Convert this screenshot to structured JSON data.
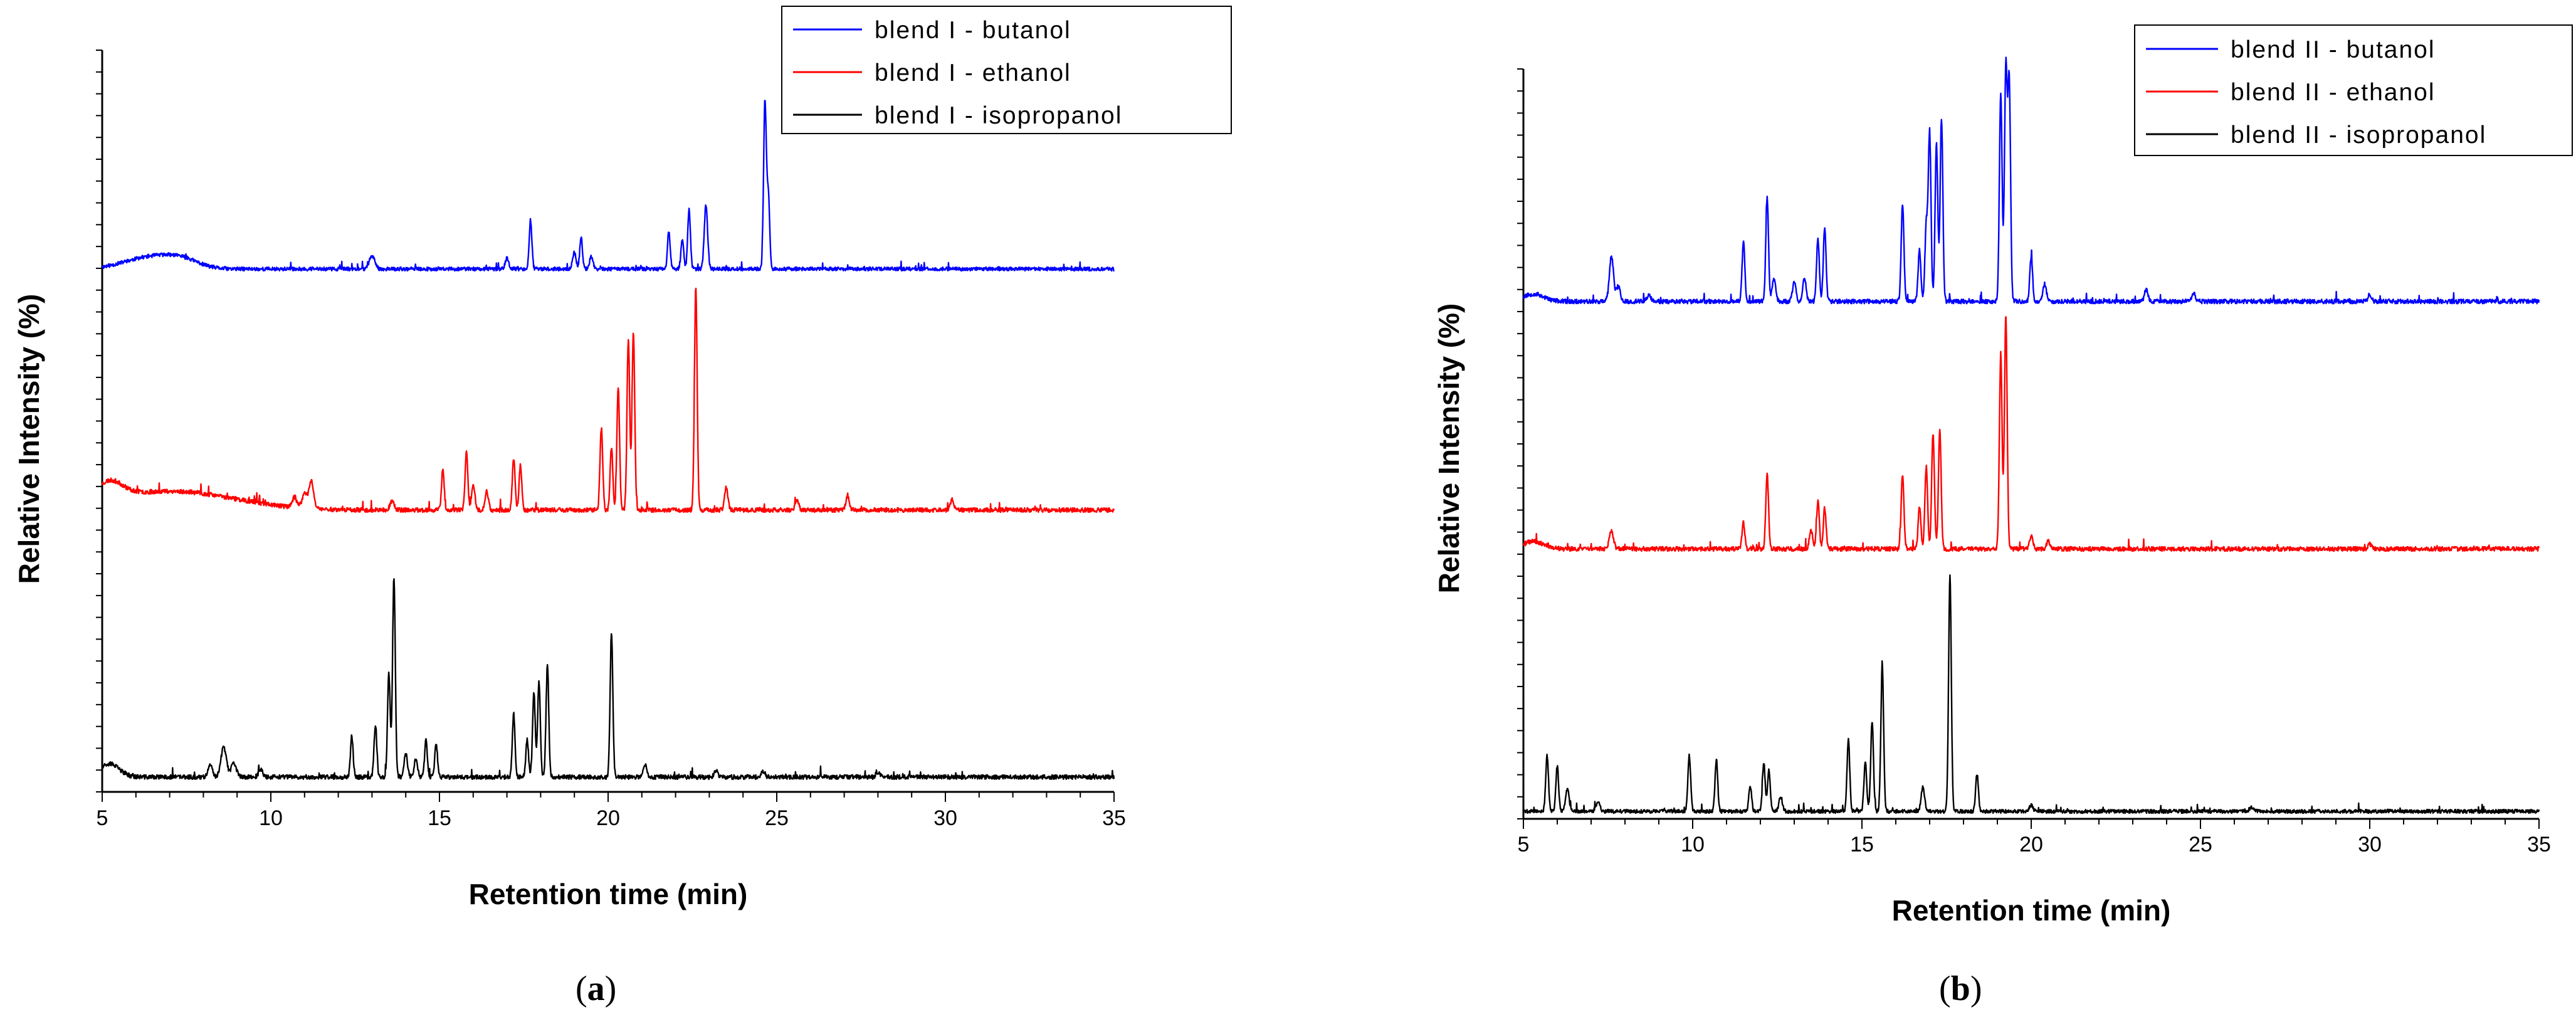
{
  "panels": [
    {
      "caption_letter": "a",
      "xlabel": "Retention time (min)",
      "ylabel": "Relative Intensity (%)",
      "xticks": [
        "5",
        "10",
        "15",
        "20",
        "25",
        "30",
        "35"
      ]
    },
    {
      "caption_letter": "b",
      "xlabel": "Retention time (min)",
      "ylabel": "Relative Intensity (%)",
      "xticks": [
        "5",
        "10",
        "15",
        "20",
        "25",
        "30",
        "35"
      ]
    }
  ],
  "colors": {
    "butanol": "#0000ff",
    "ethanol": "#ff0000",
    "isopropanol": "#000000"
  },
  "chart_data": [
    {
      "type": "line",
      "title": "(a)",
      "xlabel": "Retention time (min)",
      "ylabel": "Relative Intensity (%)",
      "xlim": [
        5,
        35
      ],
      "ylim": [
        0,
        100
      ],
      "grid": false,
      "legend_placement": "top-right",
      "series": [
        {
          "name": "blend I - butanol",
          "color": "#0000ff",
          "baseline": 70.5,
          "noise": 0.25,
          "seed": 11,
          "peaks": [
            [
              5.8,
              0.6,
              0.6
            ],
            [
              6.6,
              1.3,
              0.6
            ],
            [
              7.4,
              1.1,
              0.5
            ],
            [
              13.0,
              1.8,
              0.08
            ],
            [
              17.0,
              1.5,
              0.05
            ],
            [
              17.7,
              6.5,
              0.04
            ],
            [
              19.0,
              2.2,
              0.05
            ],
            [
              19.2,
              4.2,
              0.04
            ],
            [
              19.5,
              1.7,
              0.05
            ],
            [
              21.8,
              5.0,
              0.04
            ],
            [
              22.2,
              4.0,
              0.04
            ],
            [
              22.4,
              8.0,
              0.04
            ],
            [
              22.9,
              8.5,
              0.05
            ],
            [
              24.65,
              22.5,
              0.04
            ],
            [
              24.75,
              10.0,
              0.04
            ]
          ]
        },
        {
          "name": "blend I - ethanol",
          "color": "#ff0000",
          "baseline": 38.0,
          "noise": 0.3,
          "seed": 23,
          "peaks": [
            [
              5.2,
              2.4,
              0.4
            ],
            [
              6.5,
              2.1,
              1.6
            ],
            [
              8.5,
              0.9,
              1.5
            ],
            [
              10.7,
              1.3,
              0.07
            ],
            [
              11.0,
              2.0,
              0.07
            ],
            [
              11.2,
              3.7,
              0.07
            ],
            [
              13.6,
              1.2,
              0.06
            ],
            [
              15.1,
              5.5,
              0.04
            ],
            [
              15.8,
              7.8,
              0.04
            ],
            [
              16.0,
              3.5,
              0.05
            ],
            [
              16.4,
              2.5,
              0.05
            ],
            [
              17.2,
              7.0,
              0.04
            ],
            [
              17.4,
              6.0,
              0.04
            ],
            [
              19.8,
              11.0,
              0.04
            ],
            [
              20.1,
              8.5,
              0.04
            ],
            [
              20.3,
              16.5,
              0.04
            ],
            [
              20.6,
              23.0,
              0.04
            ],
            [
              20.75,
              24.0,
              0.04
            ],
            [
              22.6,
              30.0,
              0.04
            ],
            [
              23.5,
              3.0,
              0.05
            ],
            [
              25.6,
              1.4,
              0.05
            ],
            [
              27.1,
              2.0,
              0.05
            ],
            [
              30.2,
              1.5,
              0.05
            ]
          ]
        },
        {
          "name": "blend I - isopropanol",
          "color": "#000000",
          "baseline": 2.0,
          "noise": 0.3,
          "seed": 37,
          "peaks": [
            [
              5.2,
              1.8,
              0.3
            ],
            [
              8.2,
              1.5,
              0.07
            ],
            [
              8.6,
              4.0,
              0.08
            ],
            [
              8.9,
              1.8,
              0.08
            ],
            [
              9.7,
              1.0,
              0.06
            ],
            [
              12.4,
              5.5,
              0.04
            ],
            [
              13.1,
              7.0,
              0.04
            ],
            [
              13.5,
              14.0,
              0.04
            ],
            [
              13.65,
              27.0,
              0.04
            ],
            [
              14.0,
              3.2,
              0.05
            ],
            [
              14.3,
              2.5,
              0.05
            ],
            [
              14.6,
              5.0,
              0.04
            ],
            [
              14.9,
              4.5,
              0.04
            ],
            [
              17.2,
              8.5,
              0.04
            ],
            [
              17.6,
              5.0,
              0.04
            ],
            [
              17.8,
              11.5,
              0.04
            ],
            [
              17.95,
              13.0,
              0.04
            ],
            [
              18.2,
              15.0,
              0.04
            ],
            [
              20.1,
              19.5,
              0.04
            ],
            [
              21.1,
              1.7,
              0.05
            ],
            [
              23.2,
              0.9,
              0.05
            ],
            [
              24.6,
              0.8,
              0.05
            ],
            [
              28.0,
              0.7,
              0.05
            ]
          ]
        }
      ]
    },
    {
      "type": "line",
      "title": "(b)",
      "xlabel": "Retention time (min)",
      "ylabel": "Relative Intensity (%)",
      "xlim": [
        5,
        35
      ],
      "ylim": [
        0,
        100
      ],
      "grid": false,
      "legend_placement": "top-right",
      "series": [
        {
          "name": "blend II - butanol",
          "color": "#0000ff",
          "baseline": 69.0,
          "noise": 0.3,
          "seed": 53,
          "peaks": [
            [
              5.3,
              1.0,
              0.3
            ],
            [
              7.6,
              6.0,
              0.06
            ],
            [
              7.8,
              2.0,
              0.06
            ],
            [
              8.7,
              0.8,
              0.06
            ],
            [
              11.5,
              8.0,
              0.04
            ],
            [
              12.2,
              14.0,
              0.04
            ],
            [
              12.4,
              3.0,
              0.05
            ],
            [
              13.0,
              2.5,
              0.05
            ],
            [
              13.3,
              3.0,
              0.05
            ],
            [
              13.7,
              8.5,
              0.04
            ],
            [
              13.9,
              10.0,
              0.04
            ],
            [
              16.2,
              13.0,
              0.04
            ],
            [
              16.7,
              7.0,
              0.04
            ],
            [
              16.9,
              10.0,
              0.04
            ],
            [
              17.0,
              22.5,
              0.04
            ],
            [
              17.2,
              21.0,
              0.04
            ],
            [
              17.35,
              24.5,
              0.04
            ],
            [
              19.1,
              28.0,
              0.04
            ],
            [
              19.25,
              31.0,
              0.04
            ],
            [
              19.35,
              29.0,
              0.04
            ],
            [
              20.0,
              6.0,
              0.04
            ],
            [
              20.4,
              2.3,
              0.05
            ],
            [
              23.4,
              1.6,
              0.05
            ],
            [
              24.8,
              1.2,
              0.05
            ],
            [
              30.0,
              1.0,
              0.05
            ]
          ]
        },
        {
          "name": "blend II - ethanol",
          "color": "#ff0000",
          "baseline": 36.0,
          "noise": 0.3,
          "seed": 71,
          "peaks": [
            [
              5.3,
              1.0,
              0.3
            ],
            [
              7.6,
              2.5,
              0.06
            ],
            [
              11.5,
              3.5,
              0.04
            ],
            [
              12.2,
              10.0,
              0.04
            ],
            [
              13.5,
              2.5,
              0.05
            ],
            [
              13.7,
              6.5,
              0.04
            ],
            [
              13.9,
              5.5,
              0.04
            ],
            [
              16.2,
              10.0,
              0.04
            ],
            [
              16.7,
              5.5,
              0.04
            ],
            [
              16.9,
              11.0,
              0.04
            ],
            [
              17.1,
              15.5,
              0.04
            ],
            [
              17.3,
              16.0,
              0.04
            ],
            [
              19.1,
              26.0,
              0.04
            ],
            [
              19.25,
              31.0,
              0.04
            ],
            [
              20.0,
              1.8,
              0.05
            ],
            [
              20.5,
              1.0,
              0.05
            ],
            [
              30.0,
              0.6,
              0.05
            ]
          ]
        },
        {
          "name": "blend II - isopropanol",
          "color": "#000000",
          "baseline": 1.0,
          "noise": 0.25,
          "seed": 89,
          "peaks": [
            [
              5.7,
              7.5,
              0.04
            ],
            [
              6.0,
              6.0,
              0.04
            ],
            [
              6.3,
              3.0,
              0.05
            ],
            [
              7.2,
              1.2,
              0.06
            ],
            [
              9.9,
              7.5,
              0.04
            ],
            [
              10.7,
              7.0,
              0.04
            ],
            [
              11.7,
              3.5,
              0.04
            ],
            [
              12.1,
              6.5,
              0.04
            ],
            [
              12.25,
              5.5,
              0.04
            ],
            [
              12.6,
              2.0,
              0.05
            ],
            [
              14.6,
              9.5,
              0.04
            ],
            [
              15.1,
              6.5,
              0.04
            ],
            [
              15.3,
              12.0,
              0.04
            ],
            [
              15.6,
              19.5,
              0.04
            ],
            [
              16.8,
              3.2,
              0.05
            ],
            [
              17.6,
              31.5,
              0.04
            ],
            [
              18.4,
              5.0,
              0.04
            ],
            [
              20.0,
              0.8,
              0.05
            ],
            [
              26.5,
              0.6,
              0.05
            ]
          ]
        }
      ]
    }
  ]
}
